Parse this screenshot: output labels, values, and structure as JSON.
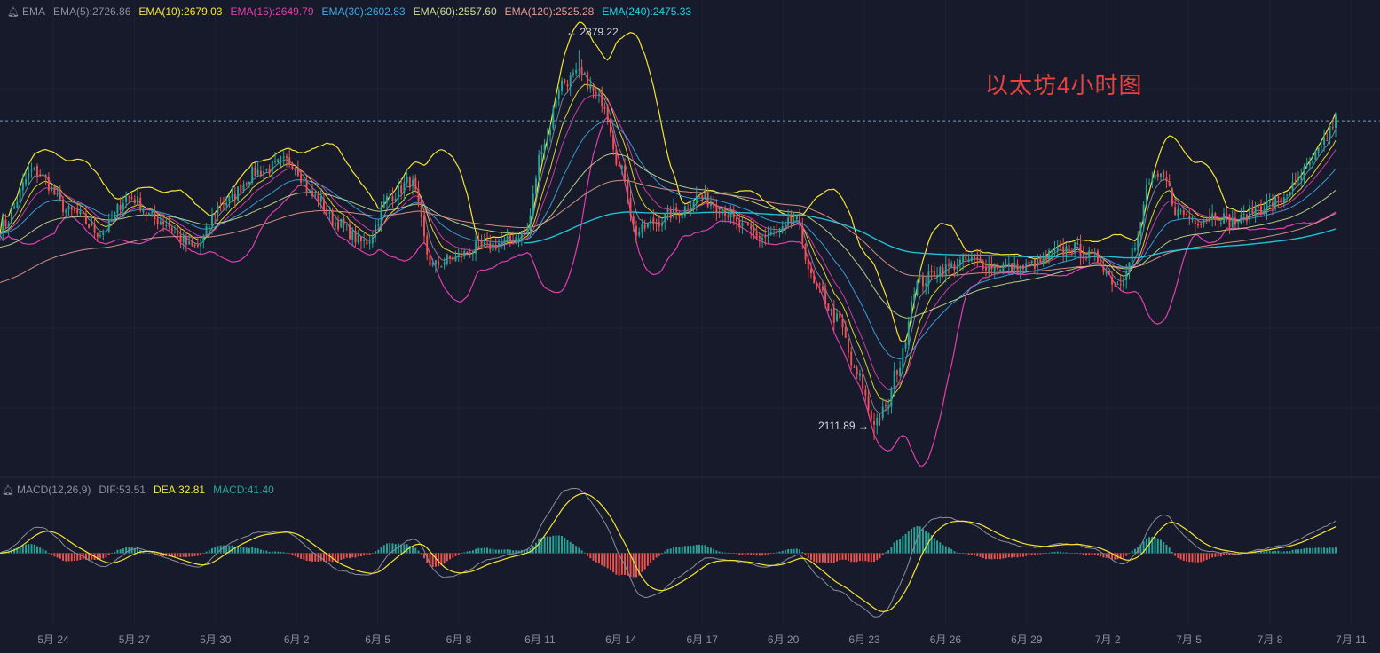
{
  "ema_legend": {
    "name": "EMA",
    "items": [
      {
        "label": "EMA(5):2726.86",
        "color": "#8a8f9e"
      },
      {
        "label": "EMA(10):2679.03",
        "color": "#f5e530"
      },
      {
        "label": "EMA(15):2649.79",
        "color": "#e23fae"
      },
      {
        "label": "EMA(30):2602.83",
        "color": "#3fa9e8"
      },
      {
        "label": "EMA(60):2557.60",
        "color": "#c8e090"
      },
      {
        "label": "EMA(120):2525.28",
        "color": "#e89a8c"
      },
      {
        "label": "EMA(240):2475.33",
        "color": "#22d3e6"
      }
    ]
  },
  "macd_legend": {
    "name": "MACD(12,26,9)",
    "items": [
      {
        "label": "DIF:53.51",
        "color": "#8a8f9e"
      },
      {
        "label": "DEA:32.81",
        "color": "#f5e530"
      },
      {
        "label": "MACD:41.40",
        "color": "#26a69a"
      }
    ]
  },
  "annotation": {
    "text": "以太坊4小时图",
    "color": "#e8423f"
  },
  "high_label": "2879.22",
  "low_label": "2111.89",
  "chart_data": [
    {
      "type": "candlestick",
      "title": "以太坊4小时图",
      "x": [
        "5月 24",
        "5月 27",
        "5月 30",
        "6月 2",
        "6月 5",
        "6月 8",
        "6月 11",
        "6月 14",
        "6月 17",
        "6月 20",
        "6月 23",
        "6月 26",
        "6月 29",
        "7月 2",
        "7月 5",
        "7月 8",
        "7月 11"
      ],
      "ylim": [
        2070,
        2960
      ],
      "last_price": 2740,
      "high": 2879.22,
      "low": 2111.89,
      "series": [
        {
          "name": "EMA(5)",
          "last": 2726.86,
          "color": "#8a8f9e"
        },
        {
          "name": "EMA(10)",
          "last": 2679.03,
          "color": "#f5e530"
        },
        {
          "name": "EMA(15)",
          "last": 2649.79,
          "color": "#e23fae"
        },
        {
          "name": "EMA(30)",
          "last": 2602.83,
          "color": "#3fa9e8"
        },
        {
          "name": "EMA(60)",
          "last": 2557.6,
          "color": "#c8e090"
        },
        {
          "name": "EMA(120)",
          "last": 2525.28,
          "color": "#e89a8c"
        },
        {
          "name": "EMA(240)",
          "last": 2475.33,
          "color": "#22d3e6"
        }
      ],
      "anchors": [
        [
          0,
          2530
        ],
        [
          12,
          2640
        ],
        [
          25,
          2560
        ],
        [
          35,
          2520
        ],
        [
          45,
          2590
        ],
        [
          55,
          2545
        ],
        [
          68,
          2490
        ],
        [
          78,
          2580
        ],
        [
          90,
          2640
        ],
        [
          101,
          2660
        ],
        [
          110,
          2590
        ],
        [
          117,
          2540
        ],
        [
          127,
          2500
        ],
        [
          137,
          2595
        ],
        [
          143,
          2620
        ],
        [
          151,
          2455
        ],
        [
          158,
          2470
        ],
        [
          167,
          2490
        ],
        [
          176,
          2500
        ],
        [
          183,
          2520
        ],
        [
          190,
          2700
        ],
        [
          196,
          2815
        ],
        [
          202,
          2830
        ],
        [
          210,
          2780
        ],
        [
          217,
          2640
        ],
        [
          222,
          2520
        ],
        [
          228,
          2540
        ],
        [
          236,
          2560
        ],
        [
          244,
          2590
        ],
        [
          251,
          2570
        ],
        [
          259,
          2530
        ],
        [
          266,
          2510
        ],
        [
          272,
          2520
        ],
        [
          277,
          2545
        ],
        [
          285,
          2410
        ],
        [
          292,
          2350
        ],
        [
          299,
          2240
        ],
        [
          305,
          2150
        ],
        [
          309,
          2170
        ],
        [
          313,
          2250
        ],
        [
          320,
          2420
        ],
        [
          329,
          2450
        ],
        [
          338,
          2465
        ],
        [
          347,
          2455
        ],
        [
          356,
          2450
        ],
        [
          362,
          2460
        ],
        [
          368,
          2480
        ],
        [
          374,
          2490
        ],
        [
          382,
          2470
        ],
        [
          390,
          2420
        ],
        [
          396,
          2490
        ],
        [
          401,
          2620
        ],
        [
          406,
          2625
        ],
        [
          411,
          2560
        ],
        [
          418,
          2545
        ],
        [
          424,
          2555
        ],
        [
          431,
          2540
        ],
        [
          439,
          2570
        ],
        [
          446,
          2580
        ],
        [
          451,
          2610
        ],
        [
          457,
          2650
        ],
        [
          462,
          2700
        ],
        [
          466,
          2740
        ]
      ]
    },
    {
      "type": "bar",
      "title": "MACD(12,26,9)",
      "x": [
        "5月 24",
        "5月 27",
        "5月 30",
        "6月 2",
        "6月 5",
        "6月 8",
        "6月 11",
        "6月 14",
        "6月 17",
        "6月 20",
        "6月 23",
        "6月 26",
        "6月 29",
        "7月 2",
        "7月 5",
        "7月 8",
        "7月 11"
      ],
      "ylim": [
        -90,
        70
      ],
      "series": [
        {
          "name": "DIF",
          "last": 53.51,
          "color": "#8a8f9e"
        },
        {
          "name": "DEA",
          "last": 32.81,
          "color": "#f5e530"
        },
        {
          "name": "MACD",
          "last": 41.4,
          "color": "#26a69a"
        }
      ]
    }
  ]
}
